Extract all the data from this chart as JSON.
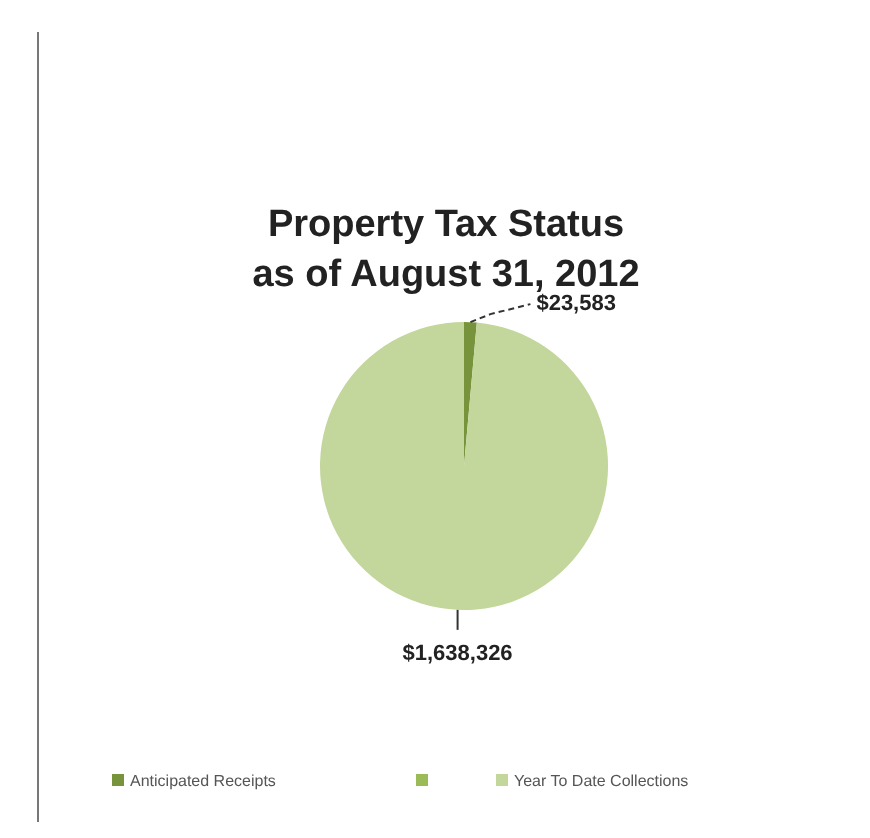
{
  "chart_data": {
    "type": "pie",
    "title": "Property Tax Status\nas of August 31, 2012",
    "categories": [
      "Anticipated Receipts",
      null,
      "Year To Date Collections"
    ],
    "values": [
      23583,
      0,
      1638326
    ],
    "colors": [
      "#77933c",
      "#9bbb59",
      "#c3d69b"
    ],
    "value_labels": [
      "$23,583",
      null,
      "$1,638,326"
    ],
    "legend": "bottom"
  }
}
